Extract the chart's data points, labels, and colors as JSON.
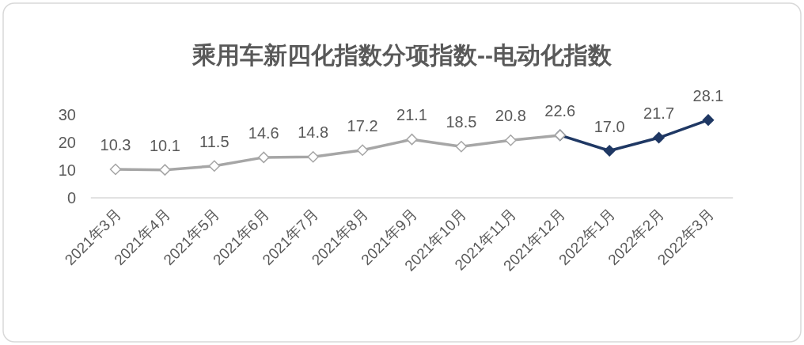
{
  "chart_data": {
    "type": "line",
    "title": "乘用车新四化指数分项指数--电动化指数",
    "categories": [
      "2021年3月",
      "2021年4月",
      "2021年5月",
      "2021年6月",
      "2021年7月",
      "2021年8月",
      "2021年9月",
      "2021年10月",
      "2021年11月",
      "2021年12月",
      "2022年1月",
      "2022年2月",
      "2022年3月"
    ],
    "series": [
      {
        "color": "#a6a6a6",
        "values": [
          10.3,
          10.1,
          11.5,
          14.6,
          14.8,
          17.2,
          21.1,
          18.5,
          20.8,
          22.6,
          null,
          null,
          null
        ],
        "value_labels": [
          "10.3",
          "10.1",
          "11.5",
          "14.6",
          "14.8",
          "17.2",
          "21.1",
          "18.5",
          "20.8",
          "22.6",
          null,
          null,
          null
        ]
      },
      {
        "color": "#1f3864",
        "values": [
          null,
          null,
          null,
          null,
          null,
          null,
          null,
          null,
          null,
          22.6,
          17.0,
          21.7,
          28.1
        ],
        "value_labels": [
          null,
          null,
          null,
          null,
          null,
          null,
          null,
          null,
          null,
          null,
          "17.0",
          "21.7",
          "28.1"
        ]
      }
    ],
    "ylim": [
      0,
      30
    ],
    "yticks": [
      0,
      10,
      20,
      30
    ],
    "marker": "diamond"
  }
}
